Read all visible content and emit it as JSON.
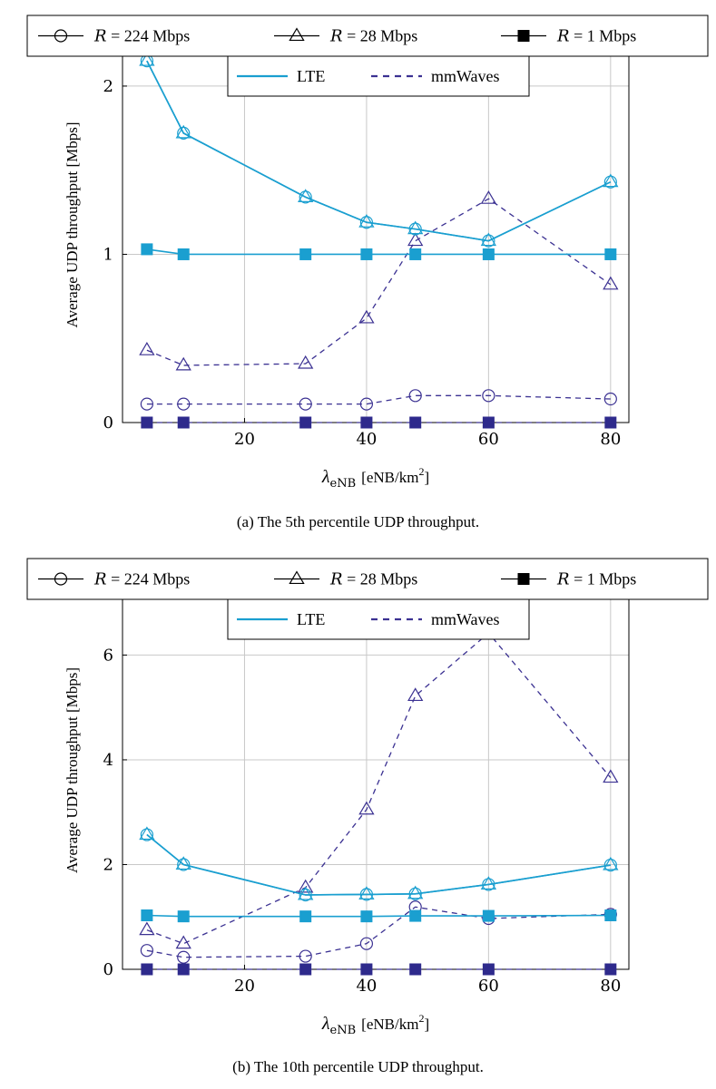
{
  "style": {
    "lte_color": "#1a9fd0",
    "mmw_color": "#3b3192",
    "lte_square_color": "#1a9fd0",
    "mmw_square_color": "#2e2a8c",
    "grid_color": "#c8c8c8"
  },
  "legend": {
    "rates": [
      {
        "prefix": "R",
        "equals": " = ",
        "value": "224 Mbps",
        "marker": "circle"
      },
      {
        "prefix": "R",
        "equals": " = ",
        "value": "28 Mbps",
        "marker": "triangle"
      },
      {
        "prefix": "R",
        "equals": " = ",
        "value": "1 Mbps",
        "marker": "square"
      }
    ],
    "techs": [
      {
        "label": "LTE",
        "line": "solid"
      },
      {
        "label": "mmWaves",
        "line": "dashed"
      }
    ]
  },
  "chart_data": [
    {
      "type": "line",
      "caption": "(a) The 5th percentile UDP throughput.",
      "xlabel_symbol": "λ",
      "xlabel_subscript": "eNB",
      "xlabel_unit": "[eNB/km",
      "xlabel_sup": "2",
      "xlabel_close": "]",
      "ylabel": "Average UDP throughput [Mbps]",
      "xlim": [
        0,
        83
      ],
      "ylim": [
        0,
        2.35
      ],
      "xticks": [
        20,
        40,
        60,
        80
      ],
      "yticks": [
        0,
        1,
        2
      ],
      "x": [
        4,
        10,
        30,
        40,
        48,
        60,
        80
      ],
      "grid": true,
      "legend_placement": "top, outside",
      "series": [
        {
          "rate": "224 Mbps",
          "tech": "LTE",
          "marker": "circle",
          "values": [
            2.15,
            1.72,
            1.34,
            1.19,
            1.15,
            1.08,
            1.43
          ]
        },
        {
          "rate": "28 Mbps",
          "tech": "LTE",
          "marker": "triangle",
          "values": [
            2.15,
            1.72,
            1.34,
            1.19,
            1.15,
            1.08,
            1.43
          ]
        },
        {
          "rate": "1 Mbps",
          "tech": "LTE",
          "marker": "square",
          "values": [
            1.03,
            1.0,
            1.0,
            1.0,
            1.0,
            1.0,
            1.0
          ]
        },
        {
          "rate": "224 Mbps",
          "tech": "mmWaves",
          "marker": "circle",
          "values": [
            0.11,
            0.11,
            0.11,
            0.11,
            0.16,
            0.16,
            0.14
          ]
        },
        {
          "rate": "28 Mbps",
          "tech": "mmWaves",
          "marker": "triangle",
          "values": [
            0.43,
            0.34,
            0.35,
            0.62,
            1.08,
            1.33,
            0.82
          ]
        },
        {
          "rate": "1 Mbps",
          "tech": "mmWaves",
          "marker": "square",
          "values": [
            0.0,
            0.0,
            0.0,
            0.0,
            0.0,
            0.0,
            0.0
          ]
        }
      ]
    },
    {
      "type": "line",
      "caption": "(b) The 10th percentile UDP throughput.",
      "xlabel_symbol": "λ",
      "xlabel_subscript": "eNB",
      "xlabel_unit": "[eNB/km",
      "xlabel_sup": "2",
      "xlabel_close": "]",
      "ylabel": "Average UDP throughput [Mbps]",
      "xlim": [
        0,
        83
      ],
      "ylim": [
        0,
        7.6
      ],
      "xticks": [
        20,
        40,
        60,
        80
      ],
      "yticks": [
        0,
        2,
        4,
        6
      ],
      "x": [
        4,
        10,
        30,
        40,
        48,
        60,
        80
      ],
      "grid": true,
      "legend_placement": "top, outside",
      "series": [
        {
          "rate": "224 Mbps",
          "tech": "LTE",
          "marker": "circle",
          "values": [
            2.57,
            2.0,
            1.42,
            1.43,
            1.44,
            1.62,
            1.99
          ]
        },
        {
          "rate": "28 Mbps",
          "tech": "LTE",
          "marker": "triangle",
          "values": [
            2.57,
            2.0,
            1.42,
            1.43,
            1.44,
            1.62,
            1.99
          ]
        },
        {
          "rate": "1 Mbps",
          "tech": "LTE",
          "marker": "square",
          "values": [
            1.03,
            1.01,
            1.01,
            1.01,
            1.02,
            1.02,
            1.03
          ]
        },
        {
          "rate": "224 Mbps",
          "tech": "mmWaves",
          "marker": "circle",
          "values": [
            0.36,
            0.23,
            0.25,
            0.49,
            1.19,
            0.97,
            1.05
          ]
        },
        {
          "rate": "28 Mbps",
          "tech": "mmWaves",
          "marker": "triangle",
          "values": [
            0.75,
            0.49,
            1.56,
            3.05,
            5.22,
            6.42,
            3.66
          ]
        },
        {
          "rate": "1 Mbps",
          "tech": "mmWaves",
          "marker": "square",
          "values": [
            0.0,
            0.0,
            0.0,
            0.0,
            0.0,
            0.0,
            0.0
          ]
        }
      ]
    }
  ]
}
